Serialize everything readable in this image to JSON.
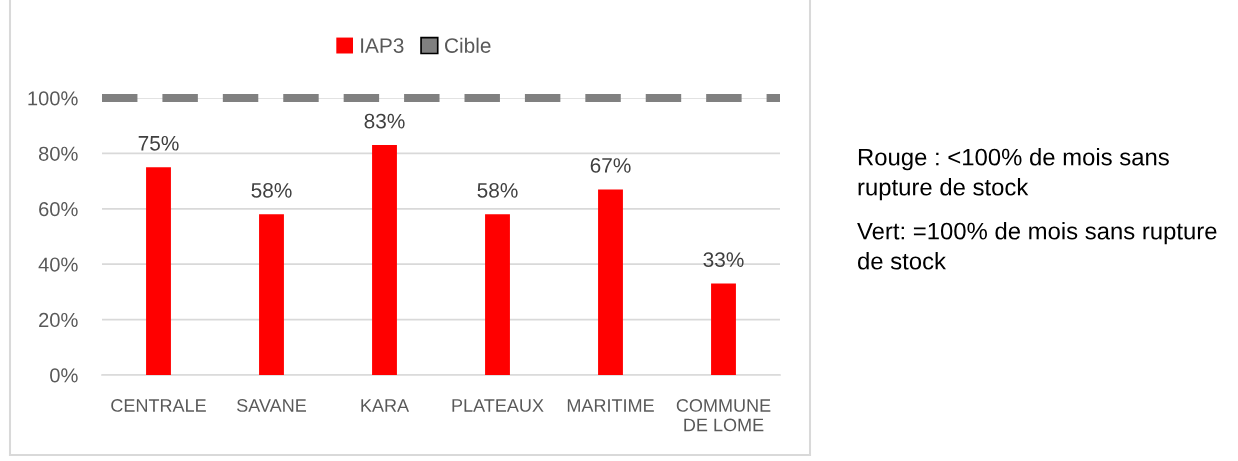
{
  "chart_data": {
    "type": "bar",
    "categories": [
      "CENTRALE",
      "SAVANE",
      "KARA",
      "PLATEAUX",
      "MARITIME",
      "COMMUNE\nDE LOME"
    ],
    "series": [
      {
        "name": "IAP3",
        "color": "#ff0000",
        "values": [
          75,
          58,
          83,
          58,
          67,
          33
        ],
        "value_labels": [
          "75%",
          "58%",
          "83%",
          "58%",
          "67%",
          "33%"
        ]
      }
    ],
    "ylim": [
      0,
      100
    ],
    "yticks": [
      {
        "value": 0,
        "label": "0%"
      },
      {
        "value": 20,
        "label": "20%"
      },
      {
        "value": 40,
        "label": "40%"
      },
      {
        "value": 60,
        "label": "60%"
      },
      {
        "value": 80,
        "label": "80%"
      },
      {
        "value": 100,
        "label": "100%"
      }
    ],
    "grid": "y",
    "legend": "top",
    "ref_lines": [
      {
        "axis": "y",
        "value": 100,
        "label": "Cible",
        "color": "#808080",
        "line_style": "dashed"
      }
    ],
    "annotations": [
      "Rouge : <100% de mois sans rupture de stock",
      "Vert: =100% de mois sans rupture de stock"
    ]
  }
}
